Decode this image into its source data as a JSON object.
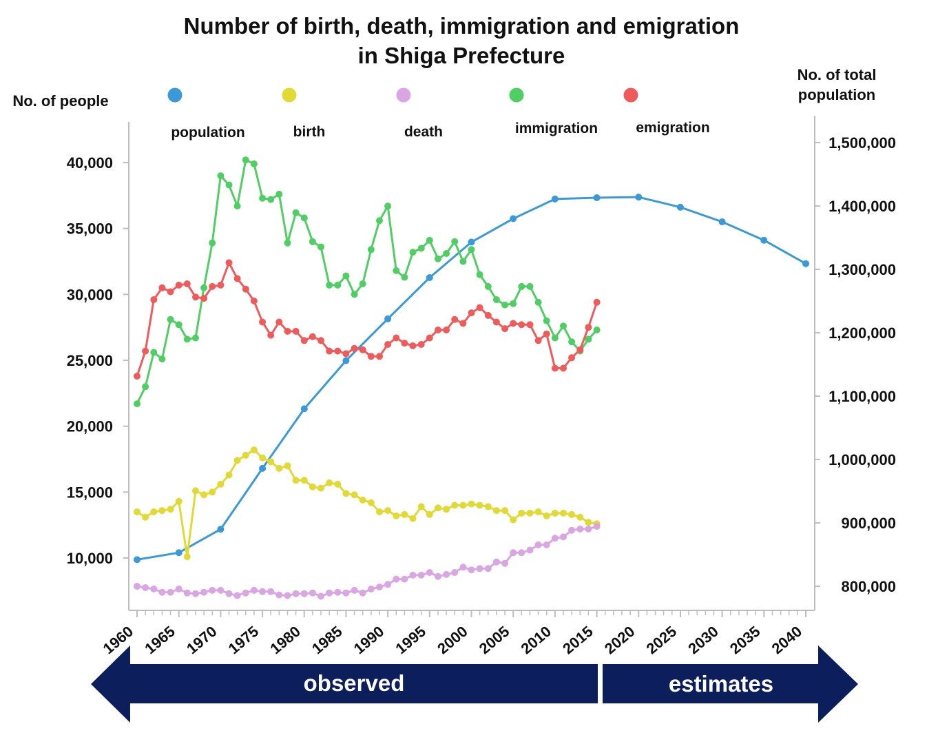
{
  "chart_data": {
    "type": "line",
    "title_line1": "Number of birth, death, immigration and emigration",
    "title_line2": "in Shiga Prefecture",
    "ylabel_left": "No. of people",
    "ylabel_right_line1": "No. of total",
    "ylabel_right_line2": "population",
    "x_range": [
      1960,
      2040
    ],
    "x_ticks": [
      "1960",
      "1965",
      "1970",
      "1975",
      "1980",
      "1985",
      "1990",
      "1995",
      "2000",
      "2005",
      "2010",
      "2015",
      "2020",
      "2025",
      "2030",
      "2035",
      "2040"
    ],
    "left_axis": {
      "range": [
        7500,
        43500
      ],
      "ticks": [
        10000,
        15000,
        20000,
        25000,
        30000,
        35000,
        40000
      ],
      "tick_labels": [
        "10,000",
        "15,000",
        "20,000",
        "25,000",
        "30,000",
        "35,000",
        "40,000"
      ]
    },
    "right_axis": {
      "range": [
        760000,
        1530000
      ],
      "ticks": [
        800000,
        900000,
        1000000,
        1100000,
        1200000,
        1300000,
        1400000,
        1500000
      ],
      "tick_labels": [
        "800,000",
        "900,000",
        "1,000,000",
        "1,100,000",
        "1,200,000",
        "1,300,000",
        "1,400,000",
        "1,500,000"
      ]
    },
    "legend": [
      {
        "key": "population",
        "label": "population",
        "color": "#3a9ad9"
      },
      {
        "key": "birth",
        "label": "birth",
        "color": "#e1d934"
      },
      {
        "key": "death",
        "label": "death",
        "color": "#d9a6e3"
      },
      {
        "key": "immigration",
        "label": "immigration",
        "color": "#4fcf63"
      },
      {
        "key": "emigration",
        "label": "emigration",
        "color": "#f05a5a"
      }
    ],
    "series": [
      {
        "key": "population",
        "axis": "right",
        "color": "#3a9ad9",
        "x": [
          1960,
          1965,
          1970,
          1975,
          1980,
          1985,
          1990,
          1995,
          2000,
          2005,
          2010,
          2015,
          2020,
          2025,
          2030,
          2035,
          2040
        ],
        "values": [
          842000,
          853000,
          890000,
          986000,
          1080000,
          1156000,
          1222000,
          1287000,
          1343000,
          1380000,
          1411000,
          1413000,
          1414000,
          1398000,
          1375000,
          1346000,
          1309000
        ]
      },
      {
        "key": "birth",
        "axis": "left",
        "color": "#e1d934",
        "x": [
          1960,
          1961,
          1962,
          1963,
          1964,
          1965,
          1966,
          1967,
          1968,
          1969,
          1970,
          1971,
          1972,
          1973,
          1974,
          1975,
          1976,
          1977,
          1978,
          1979,
          1980,
          1981,
          1982,
          1983,
          1984,
          1985,
          1986,
          1987,
          1988,
          1989,
          1990,
          1991,
          1992,
          1993,
          1994,
          1995,
          1996,
          1997,
          1998,
          1999,
          2000,
          2001,
          2002,
          2003,
          2004,
          2005,
          2006,
          2007,
          2008,
          2009,
          2010,
          2011,
          2012,
          2013,
          2014,
          2015
        ],
        "values": [
          13500,
          13100,
          13500,
          13600,
          13700,
          14300,
          10100,
          15100,
          14800,
          15000,
          15600,
          16300,
          17400,
          17800,
          18200,
          17600,
          17300,
          16800,
          17000,
          15900,
          15900,
          15400,
          15300,
          15700,
          15600,
          14900,
          14800,
          14400,
          14200,
          13500,
          13600,
          13200,
          13300,
          13000,
          13900,
          13300,
          13800,
          13700,
          14000,
          14000,
          14100,
          14000,
          13900,
          13600,
          13600,
          12900,
          13400,
          13400,
          13500,
          13200,
          13400,
          13400,
          13300,
          13100,
          12700,
          12600
        ]
      },
      {
        "key": "death",
        "axis": "left",
        "color": "#d9a6e3",
        "x": [
          1960,
          1961,
          1962,
          1963,
          1964,
          1965,
          1966,
          1967,
          1968,
          1969,
          1970,
          1971,
          1972,
          1973,
          1974,
          1975,
          1976,
          1977,
          1978,
          1979,
          1980,
          1981,
          1982,
          1983,
          1984,
          1985,
          1986,
          1987,
          1988,
          1989,
          1990,
          1991,
          1992,
          1993,
          1994,
          1995,
          1996,
          1997,
          1998,
          1999,
          2000,
          2001,
          2002,
          2003,
          2004,
          2005,
          2006,
          2007,
          2008,
          2009,
          2010,
          2011,
          2012,
          2013,
          2014,
          2015
        ],
        "values": [
          7850,
          7750,
          7650,
          7400,
          7400,
          7650,
          7350,
          7300,
          7400,
          7550,
          7550,
          7300,
          7150,
          7350,
          7550,
          7450,
          7450,
          7200,
          7150,
          7300,
          7300,
          7350,
          7100,
          7350,
          7400,
          7350,
          7550,
          7350,
          7650,
          7800,
          8000,
          8400,
          8400,
          8700,
          8700,
          8900,
          8600,
          8750,
          8900,
          9300,
          9100,
          9200,
          9200,
          9700,
          9600,
          10400,
          10400,
          10600,
          11000,
          11000,
          11500,
          11600,
          12100,
          12200,
          12200,
          12400
        ]
      },
      {
        "key": "immigration",
        "axis": "left",
        "color": "#4fcf63",
        "x": [
          1960,
          1961,
          1962,
          1963,
          1964,
          1965,
          1966,
          1967,
          1968,
          1969,
          1970,
          1971,
          1972,
          1973,
          1974,
          1975,
          1976,
          1977,
          1978,
          1979,
          1980,
          1981,
          1982,
          1983,
          1984,
          1985,
          1986,
          1987,
          1988,
          1989,
          1990,
          1991,
          1992,
          1993,
          1994,
          1995,
          1996,
          1997,
          1998,
          1999,
          2000,
          2001,
          2002,
          2003,
          2004,
          2005,
          2006,
          2007,
          2008,
          2009,
          2010,
          2011,
          2012,
          2013,
          2014,
          2015
        ],
        "values": [
          21700,
          23000,
          25600,
          25100,
          28100,
          27700,
          26600,
          26700,
          30500,
          33900,
          39000,
          38300,
          36700,
          40200,
          39900,
          37300,
          37200,
          37600,
          33900,
          36200,
          35800,
          34000,
          33600,
          30700,
          30700,
          31400,
          30000,
          30800,
          33400,
          35600,
          36700,
          31800,
          31300,
          33200,
          33500,
          34100,
          32700,
          33100,
          34000,
          32500,
          33400,
          31500,
          30600,
          29600,
          29200,
          29300,
          30600,
          30600,
          29400,
          28000,
          26700,
          27600,
          26400,
          25700,
          26600,
          27300
        ]
      },
      {
        "key": "emigration",
        "axis": "left",
        "color": "#f05a5a",
        "x": [
          1960,
          1961,
          1962,
          1963,
          1964,
          1965,
          1966,
          1967,
          1968,
          1969,
          1970,
          1971,
          1972,
          1973,
          1974,
          1975,
          1976,
          1977,
          1978,
          1979,
          1980,
          1981,
          1982,
          1983,
          1984,
          1985,
          1986,
          1987,
          1988,
          1989,
          1990,
          1991,
          1992,
          1993,
          1994,
          1995,
          1996,
          1997,
          1998,
          1999,
          2000,
          2001,
          2002,
          2003,
          2004,
          2005,
          2006,
          2007,
          2008,
          2009,
          2010,
          2011,
          2012,
          2013,
          2014,
          2015
        ],
        "values": [
          23800,
          25700,
          29600,
          30500,
          30200,
          30700,
          30800,
          29800,
          29700,
          30600,
          30700,
          32400,
          31200,
          30400,
          29500,
          27900,
          26900,
          27900,
          27200,
          27200,
          26500,
          26800,
          26500,
          25700,
          25700,
          25500,
          25900,
          25800,
          25300,
          25300,
          26200,
          26700,
          26300,
          26100,
          26200,
          26700,
          27300,
          27300,
          28100,
          27800,
          28600,
          29000,
          28400,
          27900,
          27400,
          27800,
          27700,
          27700,
          26500,
          27000,
          24400,
          24400,
          25200,
          25800,
          27500,
          29400
        ]
      }
    ],
    "periods": {
      "observed": "observed",
      "estimates": "estimates"
    }
  }
}
